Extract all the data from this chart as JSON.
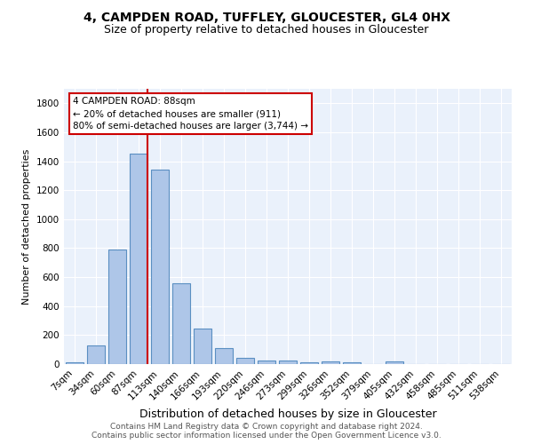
{
  "title1": "4, CAMPDEN ROAD, TUFFLEY, GLOUCESTER, GL4 0HX",
  "title2": "Size of property relative to detached houses in Gloucester",
  "xlabel": "Distribution of detached houses by size in Gloucester",
  "ylabel": "Number of detached properties",
  "bar_labels": [
    "7sqm",
    "34sqm",
    "60sqm",
    "87sqm",
    "113sqm",
    "140sqm",
    "166sqm",
    "193sqm",
    "220sqm",
    "246sqm",
    "273sqm",
    "299sqm",
    "326sqm",
    "352sqm",
    "379sqm",
    "405sqm",
    "432sqm",
    "458sqm",
    "485sqm",
    "511sqm",
    "538sqm"
  ],
  "bar_values": [
    15,
    130,
    790,
    1450,
    1340,
    560,
    248,
    110,
    40,
    27,
    27,
    15,
    18,
    13,
    0,
    20,
    0,
    0,
    0,
    0,
    0
  ],
  "bar_color": "#aec6e8",
  "bar_edge_color": "#5a8fc2",
  "background_color": "#eaf1fb",
  "annotation_title": "4 CAMPDEN ROAD: 88sqm",
  "annotation_line1": "← 20% of detached houses are smaller (911)",
  "annotation_line2": "80% of semi-detached houses are larger (3,744) →",
  "annotation_box_color": "#ffffff",
  "annotation_box_edge": "#cc0000",
  "vline_color": "#cc0000",
  "footnote1": "Contains HM Land Registry data © Crown copyright and database right 2024.",
  "footnote2": "Contains public sector information licensed under the Open Government Licence v3.0.",
  "ylim": [
    0,
    1900
  ],
  "yticks": [
    0,
    200,
    400,
    600,
    800,
    1000,
    1200,
    1400,
    1600,
    1800
  ],
  "title1_fontsize": 10,
  "title2_fontsize": 9,
  "xlabel_fontsize": 9,
  "ylabel_fontsize": 8,
  "tick_fontsize": 7.5,
  "footnote_fontsize": 6.5,
  "annotation_fontsize": 7.5
}
